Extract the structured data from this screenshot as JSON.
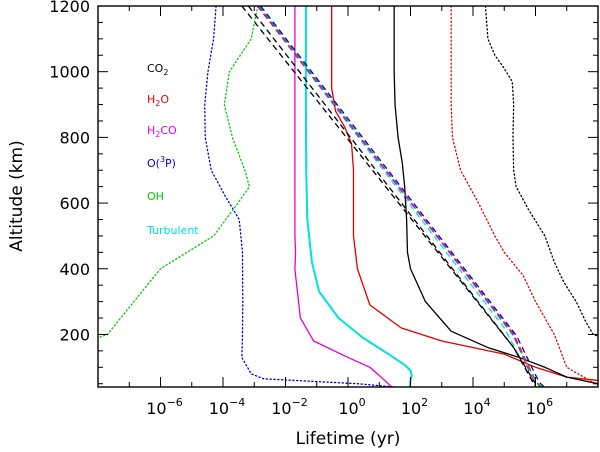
{
  "chart_data": {
    "type": "line",
    "title": "",
    "xlabel": "Lifetime (yr)",
    "ylabel": "Altitude (km)",
    "xscale": "log",
    "xlim": [
      1e-08,
      100000000.0
    ],
    "ylim": [
      40,
      1200
    ],
    "x_ticks": [
      {
        "value": 1e-06,
        "mantissa": "10",
        "exponent": "−6"
      },
      {
        "value": 0.0001,
        "mantissa": "10",
        "exponent": "−4"
      },
      {
        "value": 0.01,
        "mantissa": "10",
        "exponent": "−2"
      },
      {
        "value": 1,
        "mantissa": "10",
        "exponent": "0"
      },
      {
        "value": 100.0,
        "mantissa": "10",
        "exponent": "2"
      },
      {
        "value": 10000.0,
        "mantissa": "10",
        "exponent": "4"
      },
      {
        "value": 1000000.0,
        "mantissa": "10",
        "exponent": "6"
      }
    ],
    "y_ticks": [
      200,
      400,
      600,
      800,
      1000,
      1200
    ],
    "legend": [
      {
        "label": "CO",
        "sub": "2",
        "color": "#000000"
      },
      {
        "label": "H",
        "sub": "2",
        "label2": "O",
        "color": "#e00000"
      },
      {
        "label": "H",
        "sub": "2",
        "label2": "CO",
        "color": "#e000e0"
      },
      {
        "label": "O(",
        "sup": "3",
        "label2": "P)",
        "color": "#0000d0"
      },
      {
        "label": "OH",
        "color": "#00c800"
      },
      {
        "label": "Turbulent",
        "color": "#00e0e0"
      }
    ],
    "series": [
      {
        "name": "Turbulent",
        "color": "#00e0e0",
        "style": "solid",
        "width": 2,
        "points": [
          [
            0.045,
            1200
          ],
          [
            0.045,
            900
          ],
          [
            0.046,
            700
          ],
          [
            0.05,
            550
          ],
          [
            0.07,
            420
          ],
          [
            0.12,
            330
          ],
          [
            0.5,
            250
          ],
          [
            3,
            190
          ],
          [
            20,
            140
          ],
          [
            70,
            105
          ],
          [
            100,
            90
          ],
          [
            110,
            75
          ],
          [
            100,
            60
          ],
          [
            95,
            40
          ]
        ]
      },
      {
        "name": "Turbulent diffusion (dashed)",
        "color": "#00e0e0",
        "style": "dashed",
        "width": 1.3,
        "points": [
          [
            0.0013,
            1200
          ],
          [
            100000.0,
            220
          ],
          [
            1000000.0,
            40
          ]
        ]
      },
      {
        "name": "H2CO",
        "color": "#e000e0",
        "style": "solid",
        "width": 1.3,
        "points": [
          [
            0.02,
            1200
          ],
          [
            0.02,
            900
          ],
          [
            0.02,
            600
          ],
          [
            0.02,
            500
          ],
          [
            0.021,
            450
          ],
          [
            0.02,
            400
          ],
          [
            0.021,
            380
          ],
          [
            0.03,
            250
          ],
          [
            0.08,
            180
          ],
          [
            1,
            130
          ],
          [
            5,
            100
          ],
          [
            15,
            60
          ],
          [
            25,
            40
          ]
        ]
      },
      {
        "name": "H2O",
        "color": "#e00000",
        "style": "solid",
        "width": 1.3,
        "points": [
          [
            0.3,
            1200
          ],
          [
            0.3,
            950
          ],
          [
            0.4,
            880
          ],
          [
            0.8,
            830
          ],
          [
            1.3,
            780
          ],
          [
            1.5,
            700
          ],
          [
            1.5,
            600
          ],
          [
            1.5,
            500
          ],
          [
            2,
            400
          ],
          [
            5,
            290
          ],
          [
            50,
            220
          ],
          [
            1000.0,
            180
          ],
          [
            100000.0,
            140
          ],
          [
            1000000.0,
            100
          ],
          [
            10000000.0,
            70
          ],
          [
            100000000.0,
            60
          ]
        ]
      },
      {
        "name": "CO2",
        "color": "#000000",
        "style": "solid",
        "width": 1.3,
        "points": [
          [
            30,
            1200
          ],
          [
            30,
            1000
          ],
          [
            32,
            900
          ],
          [
            40,
            800
          ],
          [
            55,
            720
          ],
          [
            65,
            650
          ],
          [
            75,
            550
          ],
          [
            80,
            450
          ],
          [
            100,
            400
          ],
          [
            300,
            300
          ],
          [
            2000.0,
            210
          ],
          [
            30000.0,
            160
          ],
          [
            300000.0,
            130
          ],
          [
            2000000.0,
            100
          ],
          [
            10000000.0,
            70
          ],
          [
            100000000.0,
            50
          ]
        ]
      },
      {
        "name": "H2O dotted",
        "color": "#e00000",
        "style": "dotted",
        "width": 1.3,
        "points": [
          [
            2000.0,
            1200
          ],
          [
            2000.0,
            900
          ],
          [
            2200.0,
            800
          ],
          [
            4000.0,
            700
          ],
          [
            15000.0,
            600
          ],
          [
            50000.0,
            500
          ],
          [
            100000.0,
            450
          ],
          [
            400000.0,
            380
          ],
          [
            1000000.0,
            300
          ],
          [
            4000000.0,
            200
          ],
          [
            10000000.0,
            100
          ],
          [
            100000000.0,
            45
          ]
        ]
      },
      {
        "name": "CO2 dotted",
        "color": "#000000",
        "style": "dotted",
        "width": 1.3,
        "points": [
          [
            25000.0,
            1200
          ],
          [
            30000.0,
            1100
          ],
          [
            50000.0,
            1050
          ],
          [
            100000.0,
            1010
          ],
          [
            180000.0,
            970
          ],
          [
            200000.0,
            900
          ],
          [
            190000.0,
            800
          ],
          [
            200000.0,
            700
          ],
          [
            240000.0,
            650
          ],
          [
            600000.0,
            580
          ],
          [
            2000000.0,
            500
          ],
          [
            4000000.0,
            420
          ],
          [
            8000000.0,
            360
          ],
          [
            20000000.0,
            300
          ],
          [
            40000000.0,
            240
          ],
          [
            70000000.0,
            200
          ],
          [
            100000000.0,
            195
          ]
        ]
      },
      {
        "name": "CO2 dashed",
        "color": "#000000",
        "style": "dashed",
        "width": 1.3,
        "points": [
          [
            0.0004,
            1200
          ],
          [
            200000.0,
            160
          ],
          [
            1000000.0,
            40
          ]
        ]
      },
      {
        "name": "O(3P)",
        "color": "#0000d0",
        "style": "dotted",
        "width": 1.3,
        "points": [
          [
            6e-05,
            1200
          ],
          [
            5e-05,
            1100
          ],
          [
            3.3e-05,
            1000
          ],
          [
            2.6e-05,
            900
          ],
          [
            2.7e-05,
            800
          ],
          [
            4.2e-05,
            700
          ],
          [
            0.00012,
            620
          ],
          [
            0.00033,
            550
          ],
          [
            0.00042,
            450
          ],
          [
            0.00043,
            300
          ],
          [
            0.00042,
            200
          ],
          [
            0.0004,
            130
          ],
          [
            0.0008,
            80
          ],
          [
            0.002,
            65
          ],
          [
            0.02,
            60
          ],
          [
            0.2,
            55
          ],
          [
            2,
            50
          ],
          [
            30,
            40
          ]
        ]
      },
      {
        "name": "OH",
        "color": "#00c800",
        "style": "dotted",
        "width": 1.3,
        "points": [
          [
            0.0013,
            1200
          ],
          [
            0.0008,
            1100
          ],
          [
            0.00016,
            1000
          ],
          [
            0.00011,
            900
          ],
          [
            0.0002,
            800
          ],
          [
            0.0005,
            700
          ],
          [
            0.0007,
            650
          ],
          [
            0.0003,
            600
          ],
          [
            5e-05,
            500
          ],
          [
            1e-06,
            400
          ],
          [
            2e-08,
            200
          ],
          [
            1e-08,
            190
          ]
        ]
      },
      {
        "name": "CO2 diffusion",
        "color": "#000000",
        "style": "dashed",
        "width": 1.3,
        "points": [
          [
            0.00065,
            1200
          ],
          [
            200000.0,
            160
          ],
          [
            1000000.0,
            50
          ]
        ]
      },
      {
        "name": "H2O diffusion",
        "color": "#e00000",
        "style": "dashed",
        "width": 1.3,
        "points": [
          [
            0.00135,
            1200
          ],
          [
            200000.0,
            200
          ],
          [
            1000000.0,
            60
          ],
          [
            1400000.0,
            40
          ]
        ]
      },
      {
        "name": "OH diffusion",
        "color": "#00c800",
        "style": "dashed",
        "width": 1.3,
        "points": [
          [
            0.00145,
            1200
          ],
          [
            200000.0,
            195
          ],
          [
            1000000.0,
            58
          ],
          [
            1600000.0,
            40
          ]
        ]
      },
      {
        "name": "O(3P) diffusion",
        "color": "#0000d0",
        "style": "dashed",
        "width": 1.3,
        "points": [
          [
            0.0016,
            1200
          ],
          [
            250000.0,
            195
          ],
          [
            1300000.0,
            55
          ],
          [
            1900000.0,
            40
          ]
        ]
      },
      {
        "name": "H2CO diffusion",
        "color": "#e000e0",
        "style": "dashed",
        "width": 1.3,
        "points": [
          [
            0.00125,
            1200
          ],
          [
            180000.0,
            205
          ],
          [
            1000000.0,
            45
          ]
        ]
      }
    ]
  }
}
